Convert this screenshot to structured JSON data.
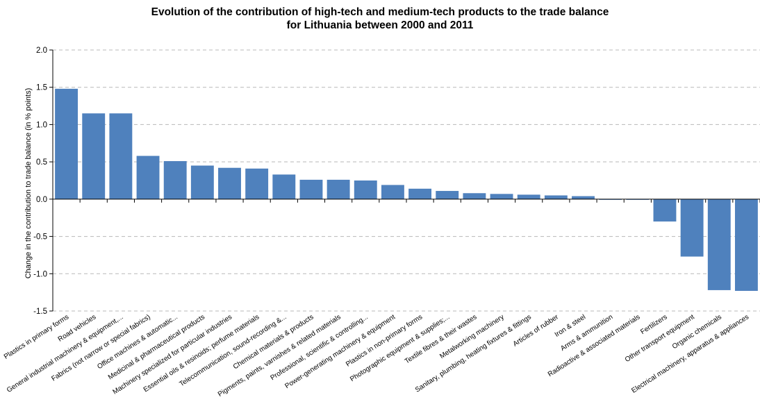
{
  "chart_data": {
    "type": "bar",
    "title_line1": "Evolution of the contribution of high-tech and medium-tech products to the trade balance",
    "title_line2": "for Lithuania between 2000 and 2011",
    "xlabel": "",
    "ylabel": "Change in the contribution to trade balance (in % points)",
    "ylim": [
      -1.5,
      2.0
    ],
    "yticks": [
      "2.0",
      "1.5",
      "1.0",
      "0.5",
      "0.0",
      "-0.5",
      "-1.0",
      "-1.5"
    ],
    "grid": true,
    "bar_color": "#4f81bd",
    "categories": [
      "Plastics in primary forms",
      "Road vehicles",
      "General industrial machinery & equipment,...",
      "Fabrics (not narrow or special fabrics)",
      "Office machines & automatic...",
      "Medicinal & pharmaceutical products",
      "Machinery specialized for particular industries",
      "Essential oils & resinoids; perfume materials",
      "Telecommunication, sound-recording &...",
      "Chemical materials & products",
      "Pigments, paints, varnishes & related materials",
      "Professional, scientific & controlling...",
      "Power-generating machinery & equipment",
      "Plastics in non-primary forms",
      "Photographic equipment & supplies;...",
      "Textile fibres & their wastes",
      "Metalworking machinery",
      "Sanitary, plumbing, heating fixtures & fittings",
      "Articles of rubber",
      "Iron & steel",
      "Arms & ammunition",
      "Radioactive & associated materials",
      "Fertilizers",
      "Other transport equipment",
      "Organic chemicals",
      "Electrical machinery, apparatus & appliances"
    ],
    "values": [
      1.48,
      1.15,
      1.15,
      0.58,
      0.51,
      0.45,
      0.42,
      0.41,
      0.33,
      0.26,
      0.26,
      0.25,
      0.19,
      0.14,
      0.11,
      0.08,
      0.07,
      0.06,
      0.05,
      0.04,
      -0.005,
      -0.005,
      -0.3,
      -0.77,
      -1.22,
      -1.23
    ]
  }
}
